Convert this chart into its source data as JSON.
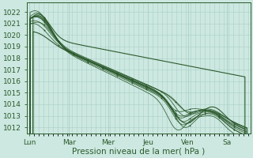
{
  "background_color": "#cce8e0",
  "plot_bg_color": "#cce8e0",
  "grid_color": "#aacfc8",
  "line_color": "#2d5a2d",
  "ylim": [
    1011.5,
    1022.8
  ],
  "yticks": [
    1012,
    1013,
    1014,
    1015,
    1016,
    1017,
    1018,
    1019,
    1020,
    1021,
    1022
  ],
  "xlabel": "Pression niveau de la mer( hPa )",
  "xtick_labels": [
    "Lun",
    "Mar",
    "Mer",
    "Jeu",
    "Ven",
    "Sa"
  ],
  "xtick_positions": [
    0,
    0.167,
    0.333,
    0.5,
    0.667,
    0.833
  ],
  "label_fontsize": 7.5,
  "tick_fontsize": 6.5
}
